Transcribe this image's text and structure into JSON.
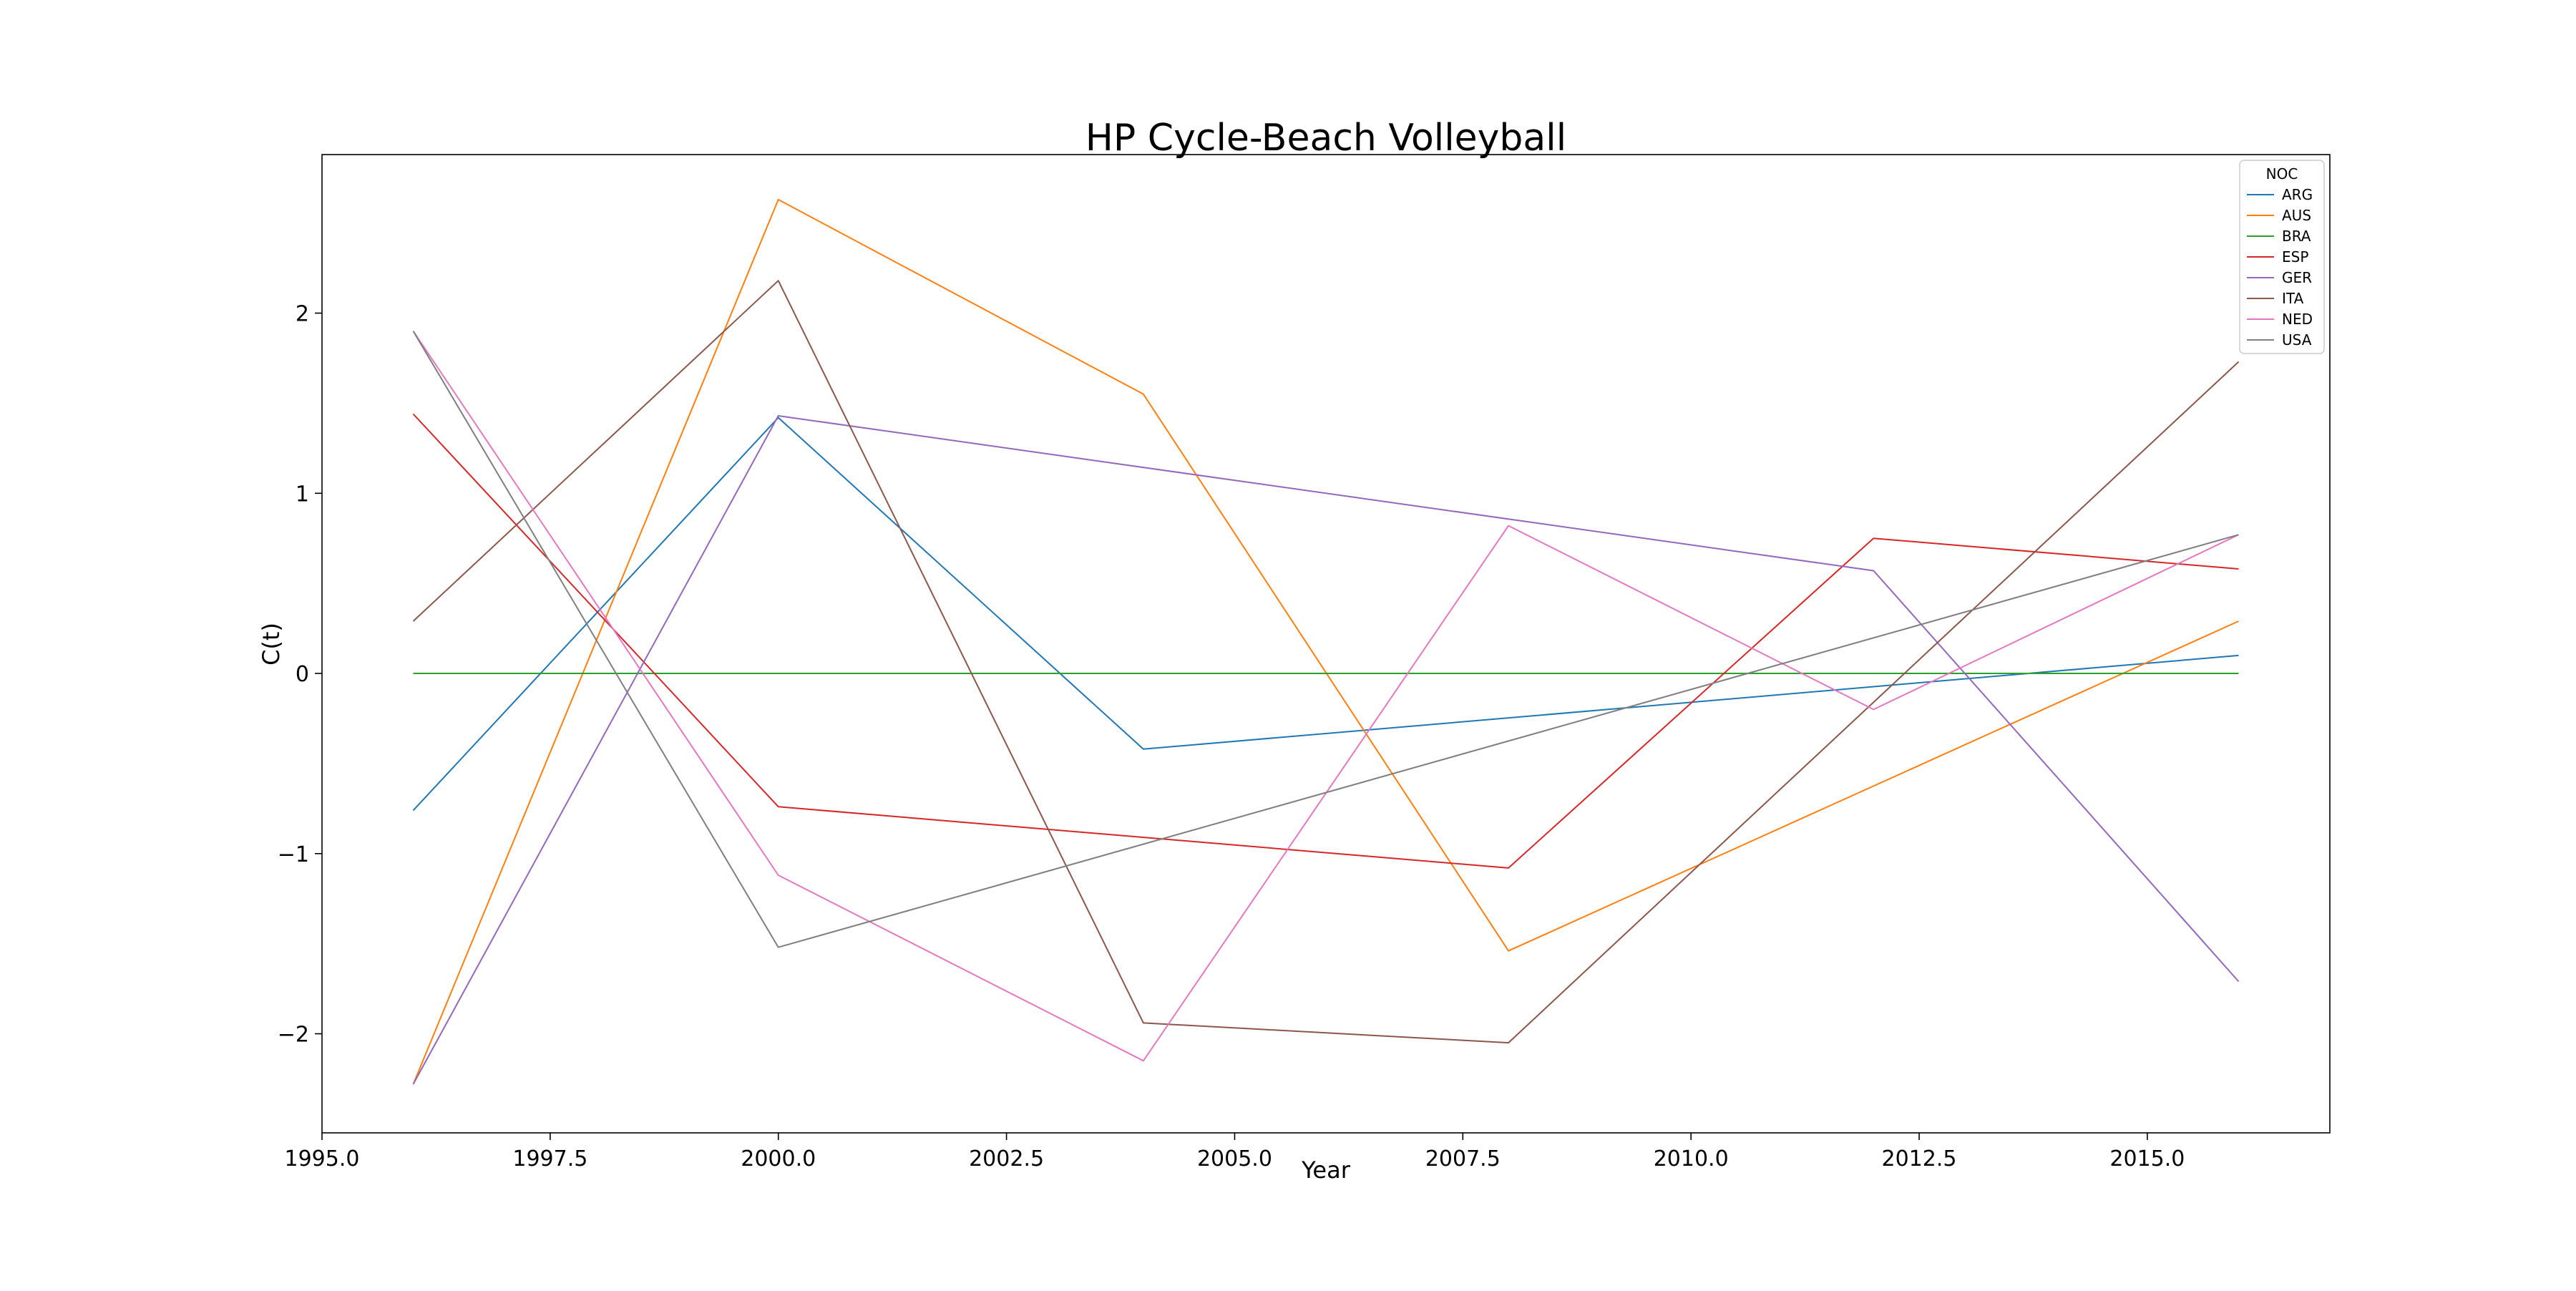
{
  "chart_data": {
    "type": "line",
    "title": "HP Cycle-Beach Volleyball",
    "xlabel": "Year",
    "ylabel": "C(t)",
    "xlim": [
      1995.0,
      2017.0
    ],
    "ylim": [
      -2.55,
      2.88
    ],
    "x_ticks": [
      {
        "value": 1995.0,
        "label": "1995.0"
      },
      {
        "value": 1997.5,
        "label": "1997.5"
      },
      {
        "value": 2000.0,
        "label": "2000.0"
      },
      {
        "value": 2002.5,
        "label": "2002.5"
      },
      {
        "value": 2005.0,
        "label": "2005.0"
      },
      {
        "value": 2007.5,
        "label": "2007.5"
      },
      {
        "value": 2010.0,
        "label": "2010.0"
      },
      {
        "value": 2012.5,
        "label": "2012.5"
      },
      {
        "value": 2015.0,
        "label": "2015.0"
      }
    ],
    "y_ticks": [
      {
        "value": -2,
        "label": "−2"
      },
      {
        "value": -1,
        "label": "−1"
      },
      {
        "value": 0,
        "label": "0"
      },
      {
        "value": 1,
        "label": "1"
      },
      {
        "value": 2,
        "label": "2"
      }
    ],
    "grid": false,
    "legend": {
      "title": "NOC",
      "placement": "top-right"
    },
    "series": [
      {
        "name": "ARG",
        "color": "#1f77b4",
        "x": [
          1996,
          2000,
          2004,
          2016
        ],
        "y": [
          -0.76,
          1.42,
          -0.42,
          0.1
        ]
      },
      {
        "name": "AUS",
        "color": "#ff7f0e",
        "x": [
          1996,
          2000,
          2004,
          2008,
          2016
        ],
        "y": [
          -2.28,
          2.63,
          1.55,
          -1.54,
          0.29
        ]
      },
      {
        "name": "BRA",
        "color": "#2ca02c",
        "x": [
          1996,
          2016
        ],
        "y": [
          0.0,
          0.0
        ]
      },
      {
        "name": "ESP",
        "color": "#d62728",
        "x": [
          1996,
          2000,
          2008,
          2012,
          2016
        ],
        "y": [
          1.44,
          -0.74,
          -1.08,
          0.75,
          0.58
        ]
      },
      {
        "name": "GER",
        "color": "#9467bd",
        "x": [
          1996,
          2000,
          2012,
          2016
        ],
        "y": [
          -2.28,
          1.43,
          0.57,
          -1.71
        ]
      },
      {
        "name": "ITA",
        "color": "#8c564b",
        "x": [
          1996,
          2000,
          2004,
          2008,
          2016
        ],
        "y": [
          0.29,
          2.18,
          -1.94,
          -2.05,
          1.73
        ]
      },
      {
        "name": "NED",
        "color": "#e377c2",
        "x": [
          1996,
          2000,
          2004,
          2008,
          2012,
          2016
        ],
        "y": [
          1.9,
          -1.12,
          -2.15,
          0.82,
          -0.2,
          0.77
        ]
      },
      {
        "name": "USA",
        "color": "#7f7f7f",
        "x": [
          1996,
          2000,
          2016
        ],
        "y": [
          1.9,
          -1.52,
          0.77
        ]
      }
    ]
  }
}
